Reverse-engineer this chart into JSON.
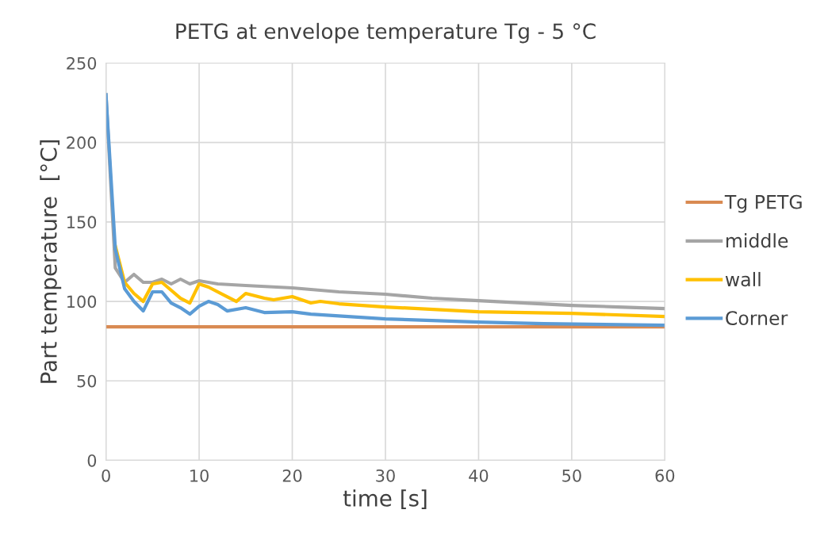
{
  "chart_data": {
    "type": "line",
    "title": "PETG at envelope temperature Tg - 5 °C",
    "xlabel": "time [s]",
    "ylabel": "Part temperature  [°C]",
    "xlim": [
      0,
      60
    ],
    "xticks": [
      0,
      10,
      20,
      30,
      40,
      50,
      60
    ],
    "ylim": [
      0,
      250
    ],
    "yticks": [
      0,
      50,
      100,
      150,
      200,
      250
    ],
    "grid": true,
    "legend": "right",
    "marker": "none",
    "line_style": "solid",
    "series": [
      {
        "name": "Tg PETG",
        "color": "#d98a52",
        "x": [
          0,
          60
        ],
        "values": [
          84,
          84
        ]
      },
      {
        "name": "middle",
        "color": "#a5a5a5",
        "x": [
          0,
          1,
          2,
          3,
          4,
          5,
          6,
          7,
          8,
          9,
          10,
          12,
          15,
          20,
          25,
          30,
          35,
          40,
          45,
          50,
          55,
          60
        ],
        "values": [
          230,
          121,
          112,
          117,
          112,
          112,
          114,
          111,
          114,
          111,
          113,
          111,
          110,
          108.5,
          106,
          104.5,
          102,
          100.5,
          99,
          97.5,
          96.5,
          95.5
        ]
      },
      {
        "name": "wall",
        "color": "#ffc000",
        "x": [
          1,
          2,
          3,
          4,
          5,
          6,
          7,
          8,
          9,
          10,
          11,
          13,
          14,
          15,
          17,
          18,
          20,
          22,
          23,
          25,
          30,
          40,
          50,
          60
        ],
        "values": [
          135,
          112,
          105,
          100,
          111,
          112,
          107,
          102,
          99,
          111,
          109,
          103,
          100,
          105,
          102,
          101,
          103,
          99,
          100,
          98.5,
          96.5,
          93.5,
          92.5,
          90.5
        ]
      },
      {
        "name": "Corner",
        "color": "#5b9bd5",
        "x": [
          0,
          1,
          2,
          3,
          4,
          5,
          6,
          7,
          8,
          9,
          10,
          11,
          12,
          13,
          15,
          17,
          20,
          22,
          30,
          40,
          47,
          60
        ],
        "values": [
          230,
          133,
          108,
          100,
          94,
          106,
          106,
          99,
          96,
          92,
          97,
          100,
          98,
          94,
          96,
          93,
          93.5,
          92,
          89,
          87,
          86,
          85
        ]
      }
    ]
  }
}
